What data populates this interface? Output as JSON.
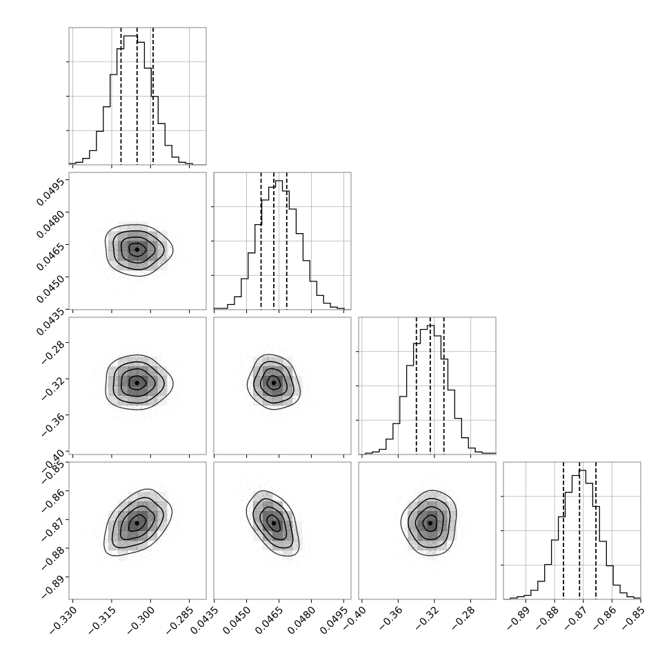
{
  "chart_data": {
    "type": "corner",
    "grid": true,
    "colors": {
      "line": "#000000",
      "grid": "#b0b0b0",
      "frame": "#808080",
      "density": "#000000",
      "points": "#888888"
    },
    "parameters": [
      {
        "ticks": [
          "−0.330",
          "−0.315",
          "−0.300",
          "−0.285"
        ],
        "tick_values": [
          -0.33,
          -0.315,
          -0.3,
          -0.285
        ],
        "range": [
          -0.3315,
          -0.2785
        ],
        "quantiles": [
          -0.3114,
          -0.3052,
          -0.299
        ],
        "mean": -0.3052,
        "sd": 0.0065
      },
      {
        "ticks": [
          "0.0435",
          "0.0450",
          "0.0465",
          "0.0480",
          "0.0495"
        ],
        "tick_values": [
          0.0435,
          0.045,
          0.0465,
          0.048,
          0.0495
        ],
        "range": [
          0.04348,
          0.04984
        ],
        "quantiles": [
          0.04567,
          0.04626,
          0.04686
        ],
        "mean": 0.04626,
        "sd": 0.0006
      },
      {
        "ticks": [
          "−0.40",
          "−0.36",
          "−0.32",
          "−0.28"
        ],
        "tick_values": [
          -0.4,
          -0.36,
          -0.32,
          -0.28
        ],
        "range": [
          -0.4037,
          -0.2521
        ],
        "quantiles": [
          -0.3399,
          -0.3246,
          -0.3095
        ],
        "mean": -0.3246,
        "sd": 0.0152
      },
      {
        "ticks": [
          "−0.89",
          "−0.88",
          "−0.87",
          "−0.86",
          "−0.85"
        ],
        "tick_values": [
          -0.89,
          -0.88,
          -0.87,
          -0.86,
          -0.85
        ],
        "range": [
          -0.8978,
          -0.85
        ],
        "quantiles": [
          -0.8769,
          -0.8713,
          -0.8656
        ],
        "mean": -0.8713,
        "sd": 0.0057
      }
    ],
    "correlations": [
      {
        "pair": [
          0,
          1
        ],
        "rho": -0.05
      },
      {
        "pair": [
          0,
          2
        ],
        "rho": 0.0
      },
      {
        "pair": [
          1,
          2
        ],
        "rho": -0.1
      },
      {
        "pair": [
          0,
          3
        ],
        "rho": 0.4
      },
      {
        "pair": [
          1,
          3
        ],
        "rho": -0.45
      },
      {
        "pair": [
          2,
          3
        ],
        "rho": 0.05
      }
    ],
    "histograms": [
      {
        "parameter": 0,
        "values": [
          1,
          2,
          5,
          11,
          26,
          45,
          70,
          90,
          100,
          100,
          95,
          75,
          53,
          32,
          15,
          6,
          2,
          1,
          0,
          0
        ]
      },
      {
        "parameter": 1,
        "values": [
          1,
          1,
          4,
          10,
          24,
          44,
          66,
          85,
          95,
          100,
          92,
          78,
          59,
          38,
          22,
          11,
          5,
          2,
          1,
          0
        ]
      },
      {
        "parameter": 2,
        "values": [
          0,
          1,
          2,
          4,
          12,
          24,
          45,
          69,
          86,
          97,
          100,
          92,
          74,
          50,
          28,
          13,
          5,
          2,
          1,
          1
        ]
      },
      {
        "parameter": 3,
        "values": [
          0,
          1,
          2,
          3,
          7,
          14,
          27,
          46,
          64,
          83,
          96,
          100,
          90,
          72,
          45,
          26,
          11,
          5,
          2,
          1
        ]
      }
    ],
    "contour_levels_sigma": [
      0.5,
      1.0,
      1.5,
      2.0
    ]
  }
}
